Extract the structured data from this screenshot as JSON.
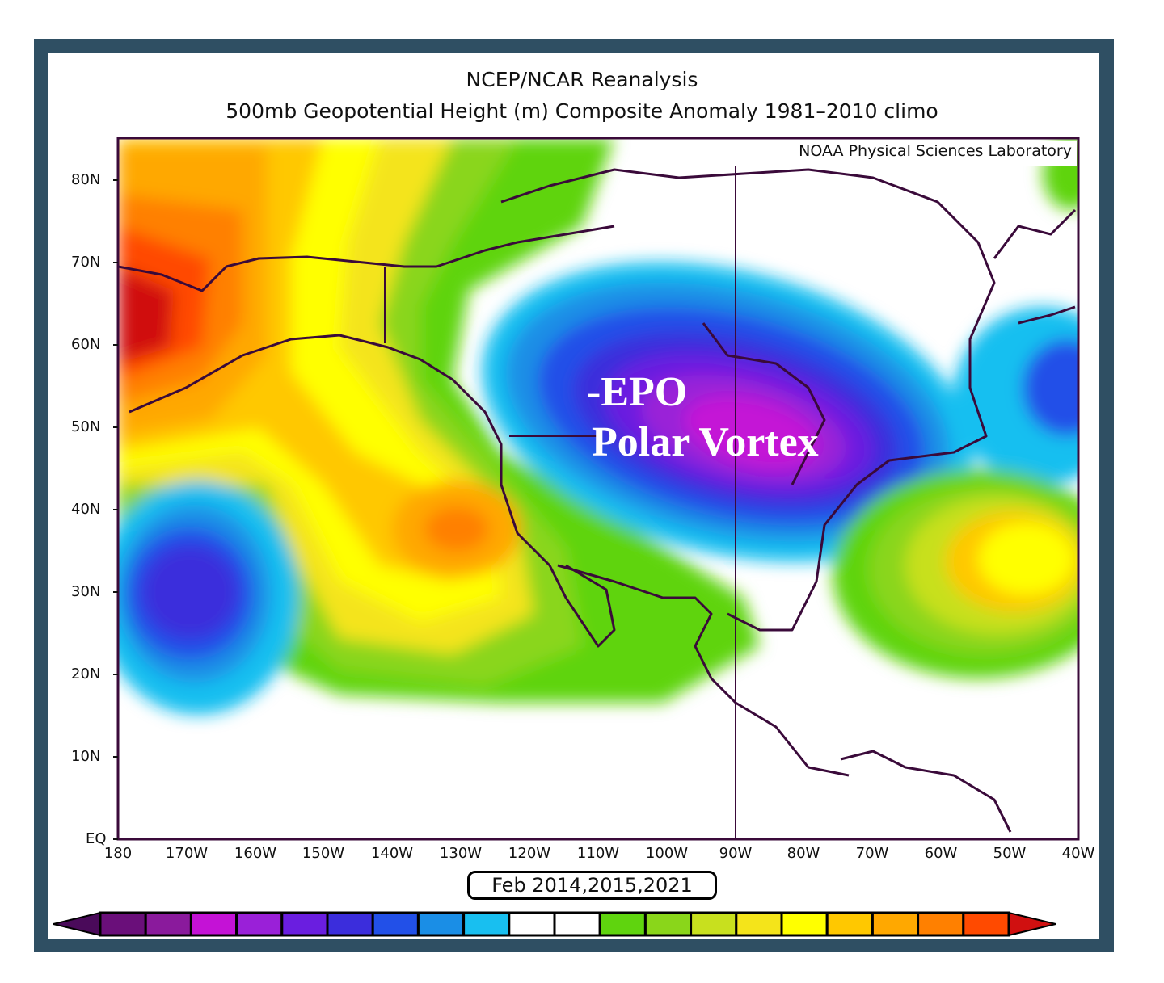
{
  "header": {
    "title": "NCEP/NCAR Reanalysis",
    "subtitle": "500mb Geopotential Height (m) Composite Anomaly 1981–2010 climo",
    "credit": "NOAA Physical Sciences Laboratory"
  },
  "map": {
    "lat_labels": [
      "80N",
      "70N",
      "60N",
      "50N",
      "40N",
      "30N",
      "20N",
      "10N",
      "EQ"
    ],
    "lon_labels": [
      "180",
      "170W",
      "160W",
      "150W",
      "140W",
      "130W",
      "120W",
      "110W",
      "100W",
      "90W",
      "80W",
      "70W",
      "60W",
      "50W",
      "40W"
    ],
    "period_label": "Feb 2014,2015,2021",
    "annotation_line1": "-EPO",
    "annotation_line2": "Polar Vortex"
  },
  "colorbar": {
    "colors": [
      "#6a0f7a",
      "#8a1a9c",
      "#c412d6",
      "#9a20d8",
      "#6a1ee0",
      "#3b2ddc",
      "#2250e8",
      "#1a8ee6",
      "#18bff0",
      "#ffffff",
      "#ffffff",
      "#5fd40e",
      "#8ad61a",
      "#c8e01e",
      "#f4e41a",
      "#ffff00",
      "#ffc800",
      "#ffa800",
      "#ff8000",
      "#ff4a00"
    ],
    "low_end_color": "#4a0a5a",
    "high_end_color": "#d01010"
  },
  "palette": {
    "frame": "#2f4f63",
    "coast": "#3a0a3a"
  }
}
